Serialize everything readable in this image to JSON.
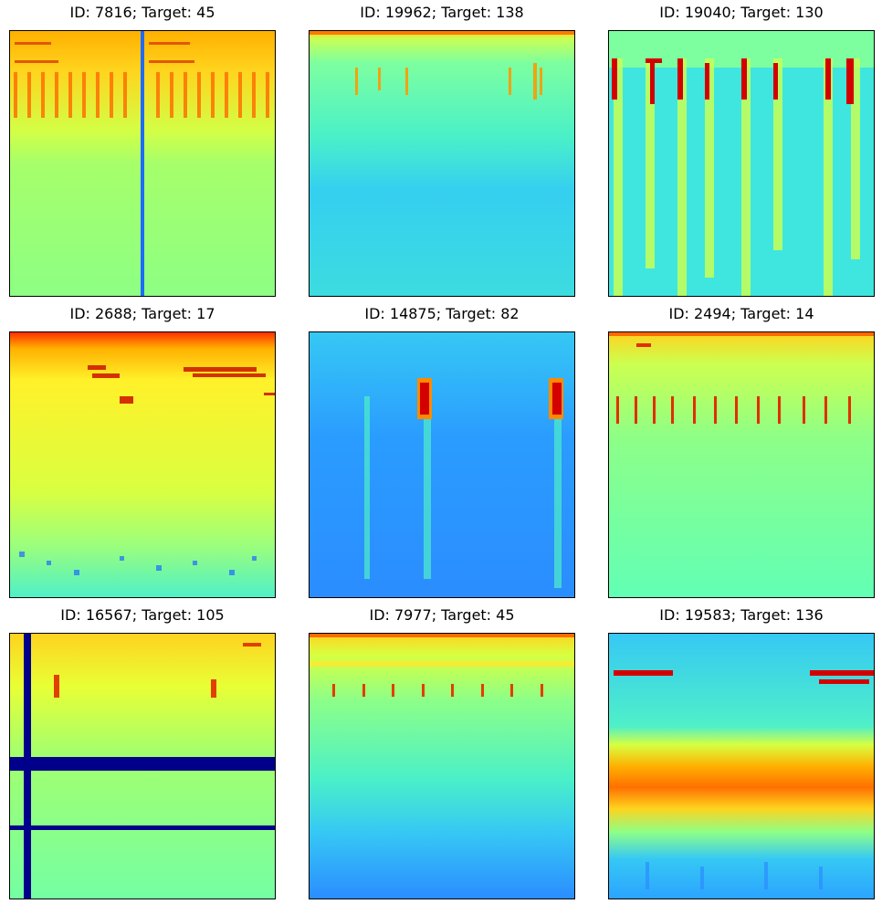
{
  "figure": {
    "panels": [
      {
        "id": "7816",
        "target": "45",
        "title": "ID: 7816; Target: 45"
      },
      {
        "id": "19962",
        "target": "138",
        "title": "ID: 19962; Target: 138"
      },
      {
        "id": "19040",
        "target": "130",
        "title": "ID: 19040; Target: 130"
      },
      {
        "id": "2688",
        "target": "17",
        "title": "ID: 2688; Target: 17"
      },
      {
        "id": "14875",
        "target": "82",
        "title": "ID: 14875; Target: 82"
      },
      {
        "id": "2494",
        "target": "14",
        "title": "ID: 2494; Target: 14"
      },
      {
        "id": "16567",
        "target": "105",
        "title": "ID: 16567; Target: 105"
      },
      {
        "id": "7977",
        "target": "45",
        "title": "ID: 7977; Target: 45"
      },
      {
        "id": "19583",
        "target": "136",
        "title": "ID: 19583; Target: 136"
      }
    ],
    "colors": {
      "dark_red": "#8b0000",
      "red": "#e41a1c",
      "orange": "#ff8c00",
      "yellow": "#ffef3a",
      "light_green": "#b7ff5a",
      "cyan_green": "#5dffb0",
      "cyan": "#34d7ff",
      "blue": "#1e6bff",
      "navy": "#00008b"
    }
  }
}
